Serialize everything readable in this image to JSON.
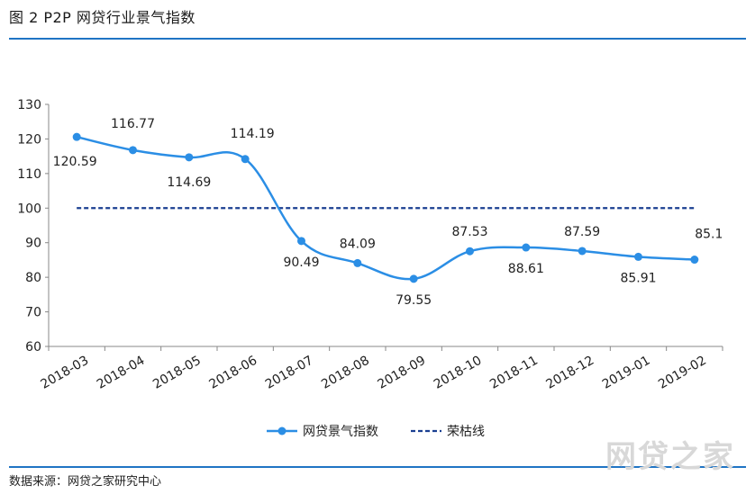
{
  "figure": {
    "title": "图 2   P2P 网贷行业景气指数",
    "source": "数据来源：网贷之家研究中心",
    "watermark": "网贷之家"
  },
  "chart_data": {
    "type": "line",
    "categories": [
      "2018-03",
      "2018-04",
      "2018-05",
      "2018-06",
      "2018-07",
      "2018-08",
      "2018-09",
      "2018-10",
      "2018-11",
      "2018-12",
      "2019-01",
      "2019-02"
    ],
    "series": [
      {
        "name": "网贷景气指数",
        "values": [
          120.59,
          116.77,
          114.69,
          114.19,
          90.49,
          84.09,
          79.55,
          87.53,
          88.61,
          87.59,
          85.91,
          85.1
        ],
        "color": "#2b8ee5",
        "style": "smooth-line-with-markers"
      },
      {
        "name": "荣枯线",
        "values": [
          100,
          100,
          100,
          100,
          100,
          100,
          100,
          100,
          100,
          100,
          100,
          100
        ],
        "color": "#1a3f91",
        "style": "dashed"
      }
    ],
    "data_labels": [
      "120.59",
      "116.77",
      "114.69",
      "114.19",
      "90.49",
      "84.09",
      "79.55",
      "87.53",
      "88.61",
      "87.59",
      "85.91",
      "85.1"
    ],
    "ylim": [
      60,
      130
    ],
    "yticks": [
      60,
      70,
      80,
      90,
      100,
      110,
      120,
      130
    ],
    "xlabel": "",
    "ylabel": "",
    "grid": false,
    "legend_position": "bottom"
  }
}
